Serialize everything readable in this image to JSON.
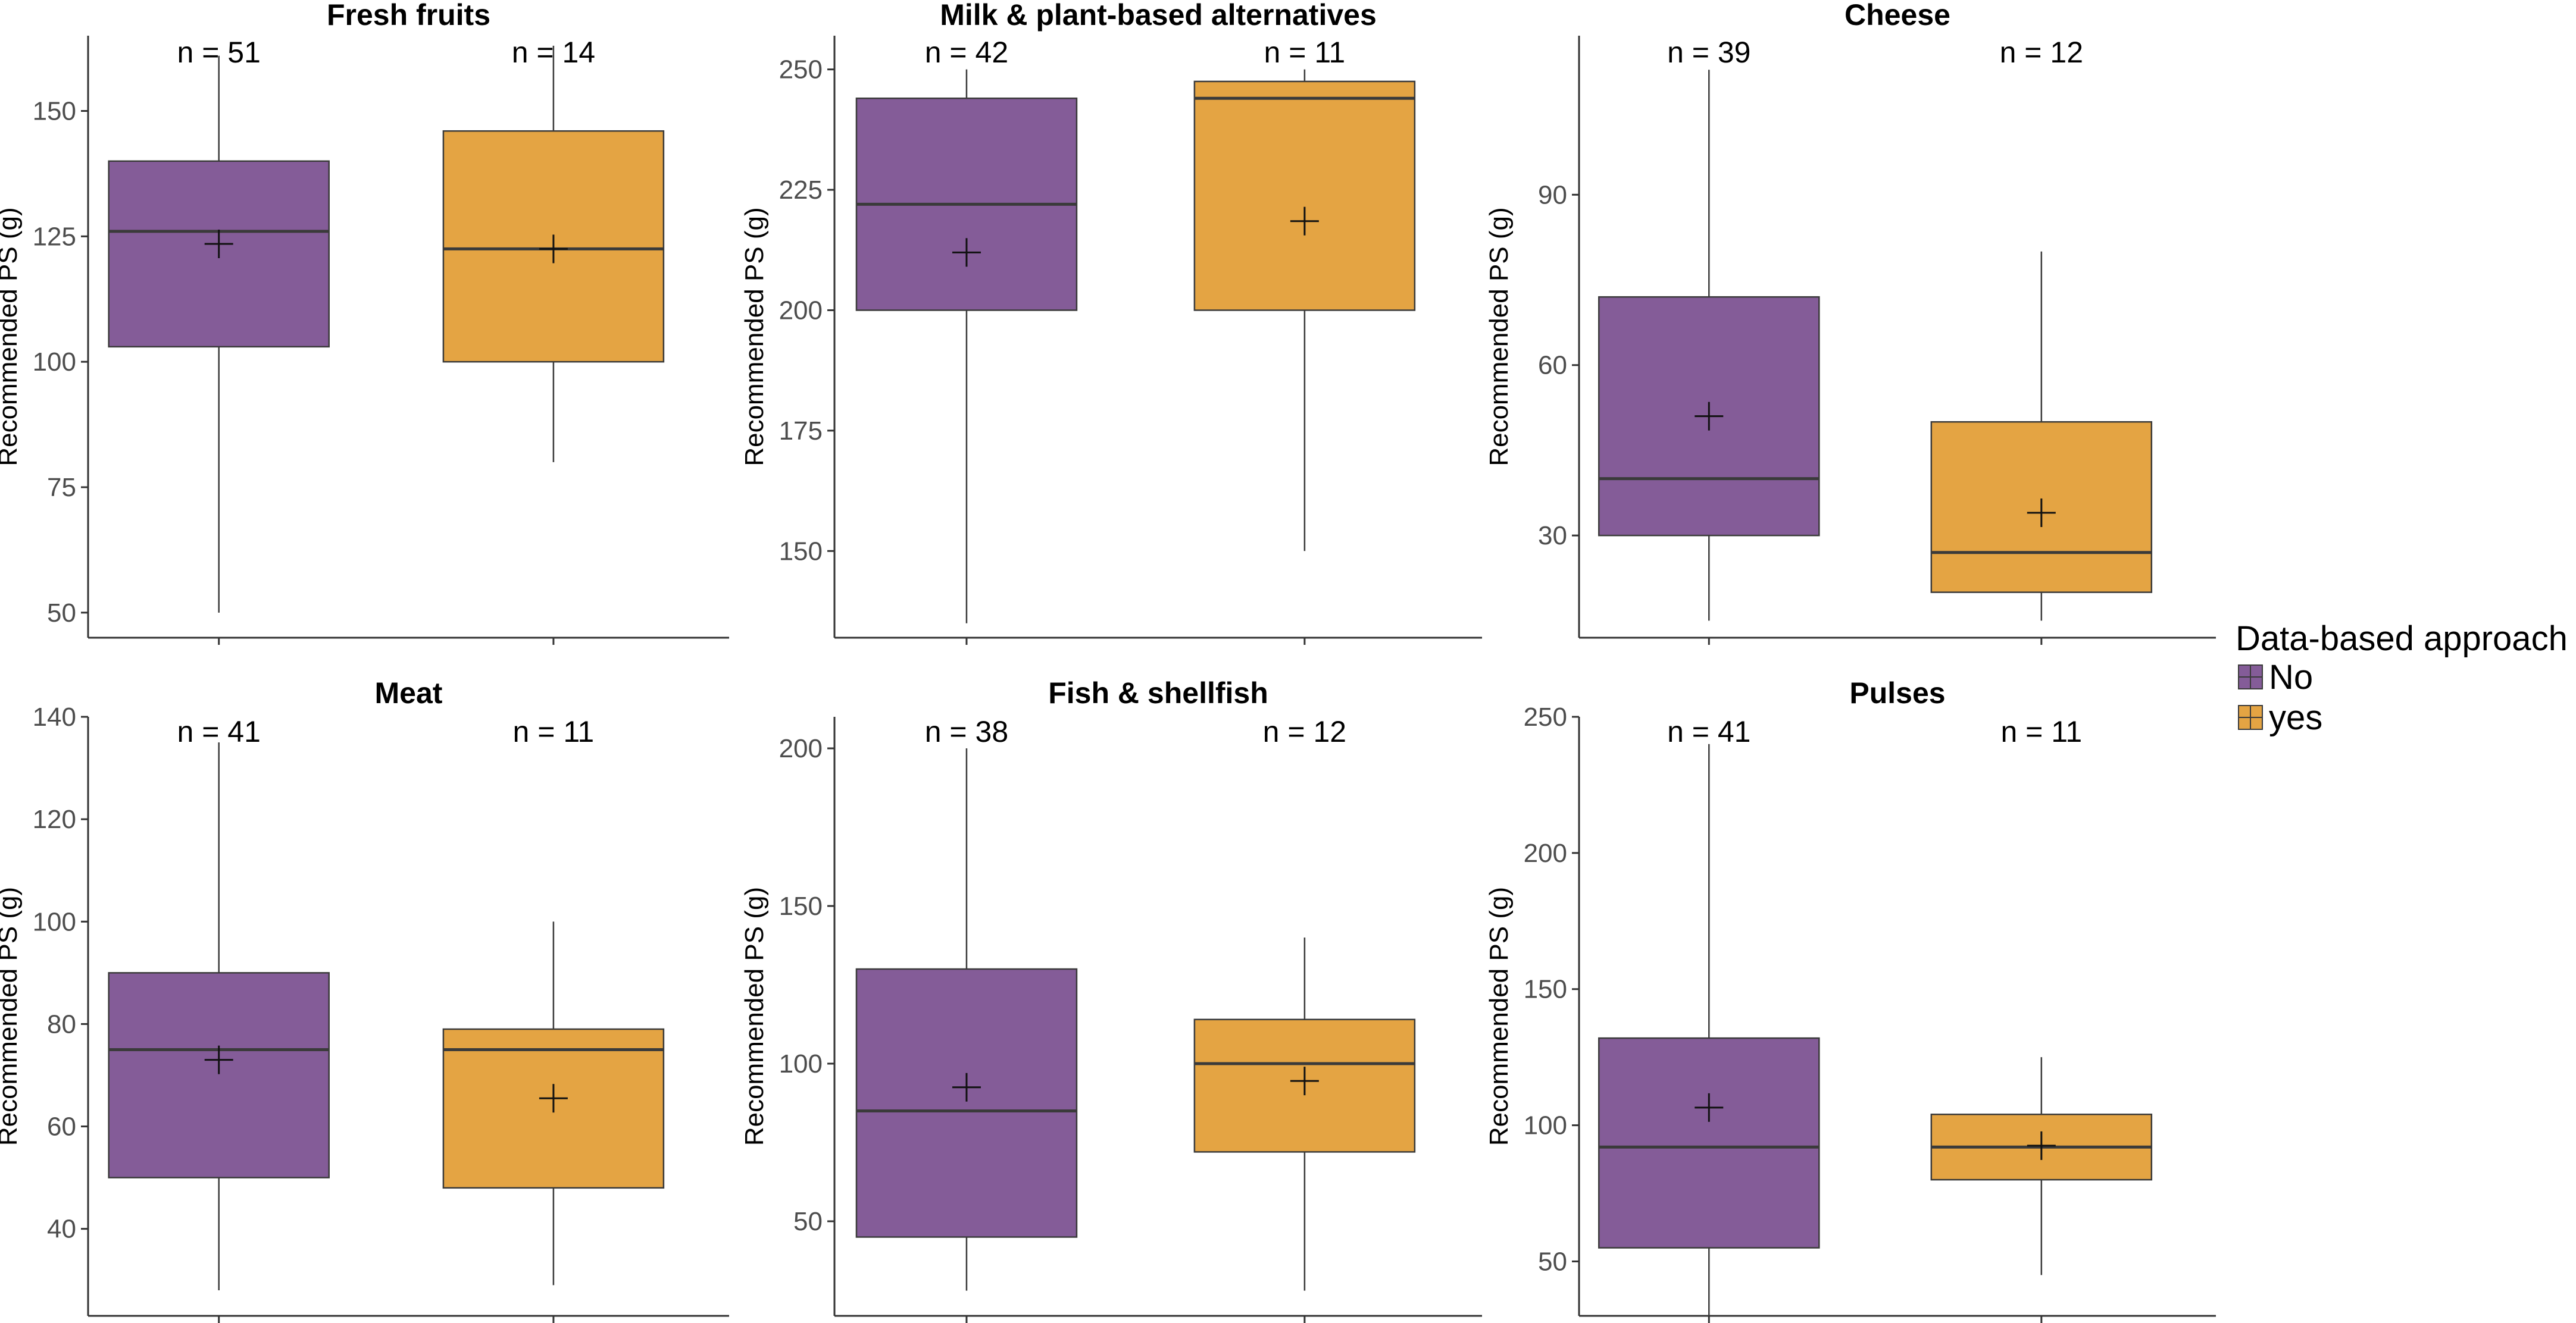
{
  "colors": {
    "No": "#845c98",
    "yes": "#e4a443",
    "box_stroke": "#3a3a3a",
    "axis": "#333333"
  },
  "chart_data": [
    {
      "type": "boxplot",
      "title": "Fresh fruits",
      "ylabel": "Recommended PS (g)",
      "ylim": [
        45,
        165
      ],
      "yticks": [
        50,
        75,
        100,
        125,
        150
      ],
      "groups": [
        {
          "name": "No",
          "n_label": "n = 51",
          "min": 50,
          "q1": 103,
          "median": 126,
          "q3": 140,
          "max": 161,
          "mean": 123.5
        },
        {
          "name": "yes",
          "n_label": "n = 14",
          "min": 80,
          "q1": 100,
          "median": 122.5,
          "q3": 146,
          "max": 163,
          "mean": 122.5
        }
      ]
    },
    {
      "type": "boxplot",
      "title": "Milk & plant-based alternatives",
      "ylabel": "Recommended PS (g)",
      "ylim": [
        132,
        257
      ],
      "yticks": [
        150,
        175,
        200,
        225,
        250
      ],
      "groups": [
        {
          "name": "No",
          "n_label": "n = 42",
          "min": 135,
          "q1": 200,
          "median": 222,
          "q3": 244,
          "max": 250,
          "mean": 212
        },
        {
          "name": "yes",
          "n_label": "n = 11",
          "min": 150,
          "q1": 200,
          "median": 244,
          "q3": 247.5,
          "max": 250,
          "mean": 218.5
        }
      ]
    },
    {
      "type": "boxplot",
      "title": "Cheese",
      "ylabel": "Recommended PS (g)",
      "ylim": [
        12,
        118
      ],
      "yticks": [
        30,
        60,
        90
      ],
      "groups": [
        {
          "name": "No",
          "n_label": "n = 39",
          "min": 15,
          "q1": 30,
          "median": 40,
          "q3": 72,
          "max": 112,
          "mean": 51
        },
        {
          "name": "yes",
          "n_label": "n = 12",
          "min": 15,
          "q1": 20,
          "median": 27,
          "q3": 50,
          "max": 80,
          "mean": 34
        }
      ]
    },
    {
      "type": "boxplot",
      "title": "Meat",
      "ylabel": "Recommended PS (g)",
      "ylim": [
        23,
        140
      ],
      "yticks": [
        40,
        60,
        80,
        100,
        120,
        140
      ],
      "groups": [
        {
          "name": "No",
          "n_label": "n = 41",
          "min": 28,
          "q1": 50,
          "median": 75,
          "q3": 90,
          "max": 135,
          "mean": 73
        },
        {
          "name": "yes",
          "n_label": "n = 11",
          "min": 29,
          "q1": 48,
          "median": 75,
          "q3": 79,
          "max": 100,
          "mean": 65.5
        }
      ]
    },
    {
      "type": "boxplot",
      "title": "Fish & shellfish",
      "ylabel": "Recommended PS (g)",
      "ylim": [
        20,
        210
      ],
      "yticks": [
        50,
        100,
        150,
        200
      ],
      "groups": [
        {
          "name": "No",
          "n_label": "n = 38",
          "min": 28,
          "q1": 45,
          "median": 85,
          "q3": 130,
          "max": 200,
          "mean": 92.5
        },
        {
          "name": "yes",
          "n_label": "n = 12",
          "min": 28,
          "q1": 72,
          "median": 100,
          "q3": 114,
          "max": 140,
          "mean": 94.5
        }
      ]
    },
    {
      "type": "boxplot",
      "title": "Pulses",
      "ylabel": "Recommended PS (g)",
      "ylim": [
        30,
        250
      ],
      "yticks": [
        50,
        100,
        150,
        200,
        250
      ],
      "groups": [
        {
          "name": "No",
          "n_label": "n = 41",
          "min": 30,
          "q1": 55,
          "median": 92,
          "q3": 132,
          "max": 240,
          "mean": 106.5
        },
        {
          "name": "yes",
          "n_label": "n = 11",
          "min": 45,
          "q1": 80,
          "median": 92,
          "q3": 104,
          "max": 125,
          "mean": 92.5
        }
      ]
    }
  ],
  "legend": {
    "title": "Data-based approach",
    "items": [
      {
        "name": "No",
        "label": "No"
      },
      {
        "name": "yes",
        "label": "yes"
      }
    ]
  }
}
